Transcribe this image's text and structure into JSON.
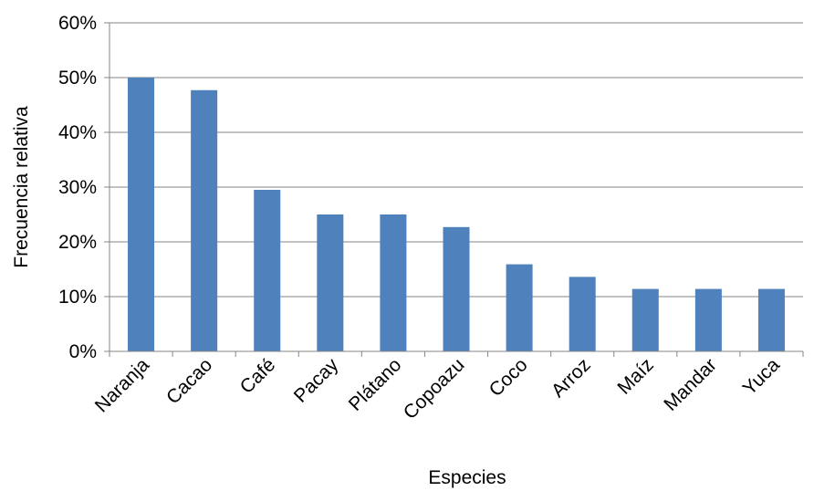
{
  "chart_data": {
    "type": "bar",
    "title": "",
    "xlabel": "Especies",
    "ylabel": "Frecuencia relativa",
    "categories": [
      "Naranja",
      "Cacao",
      "Café",
      "Pacay",
      "Plátano",
      "Copoazu",
      "Coco",
      "Arroz",
      "Maíz",
      "Mandar",
      "Yuca"
    ],
    "values": [
      50,
      47.7,
      29.5,
      25,
      25,
      22.7,
      15.9,
      13.6,
      11.4,
      11.4,
      11.4
    ],
    "ylim": [
      0,
      60
    ],
    "yticks": [
      0,
      10,
      20,
      30,
      40,
      50,
      60
    ],
    "ytick_labels": [
      "0%",
      "10%",
      "20%",
      "30%",
      "40%",
      "50%",
      "60%"
    ],
    "grid": true,
    "legend": "none",
    "colors": {
      "bar": "#4F81BD",
      "grid": "#868686",
      "axis": "#868686"
    }
  }
}
